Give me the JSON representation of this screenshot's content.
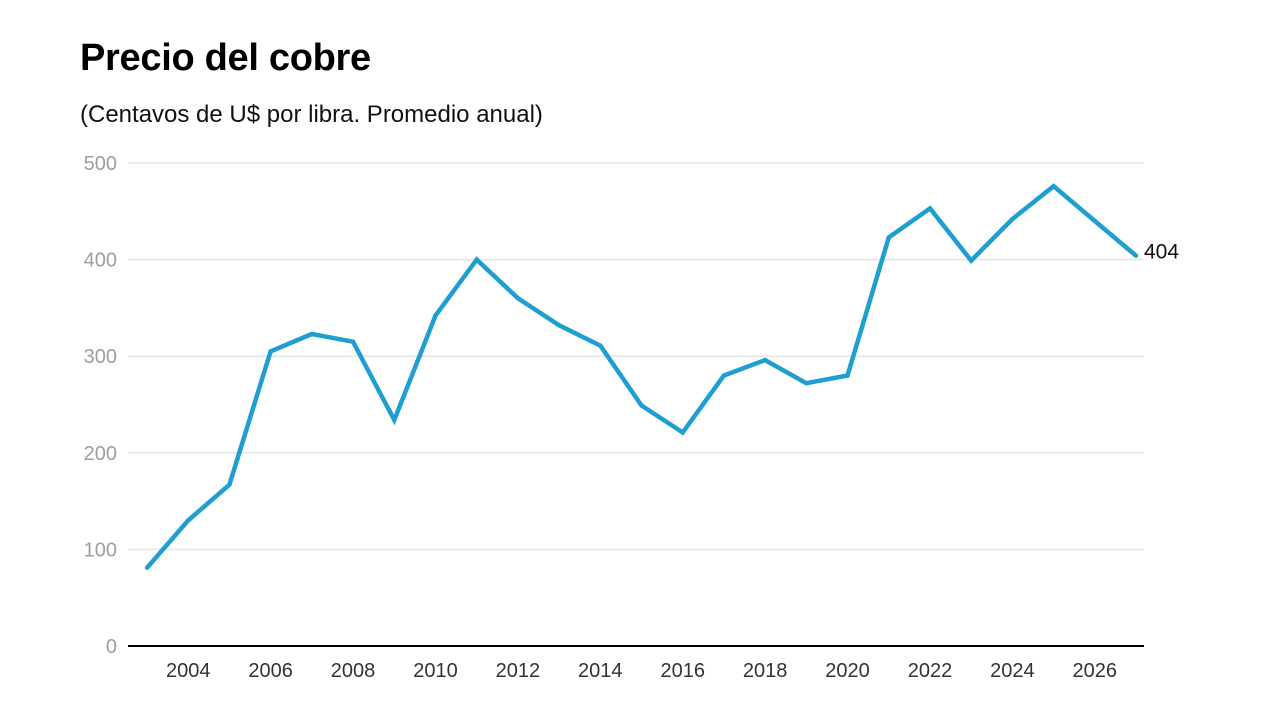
{
  "header": {
    "title": "Precio del cobre",
    "subtitle": "(Centavos de U$ por libra. Promedio anual)"
  },
  "chart_data": {
    "type": "line",
    "title": "Precio del cobre",
    "subtitle": "(Centavos de U$ por libra. Promedio anual)",
    "xlabel": "",
    "ylabel": "",
    "x": [
      2003,
      2004,
      2005,
      2006,
      2007,
      2008,
      2009,
      2010,
      2011,
      2012,
      2013,
      2014,
      2015,
      2016,
      2017,
      2018,
      2019,
      2020,
      2021,
      2022,
      2023,
      2024,
      2025,
      2026,
      2027
    ],
    "series": [
      {
        "name": "",
        "color": "#1f9fcf",
        "values": [
          81,
          130,
          167,
          305,
          323,
          315,
          234,
          342,
          400,
          360,
          332,
          311,
          249,
          221,
          280,
          296,
          272,
          280,
          423,
          453,
          399,
          442,
          476,
          440,
          404
        ]
      }
    ],
    "end_label": "404",
    "ylim": [
      0,
      500
    ],
    "yticks": [
      0,
      100,
      200,
      300,
      400,
      500
    ],
    "xlim": [
      2003,
      2027
    ],
    "xticks": [
      2004,
      2006,
      2008,
      2010,
      2012,
      2014,
      2016,
      2018,
      2020,
      2022,
      2024,
      2026
    ],
    "grid": true,
    "legend": "none",
    "colors": {
      "line": "#1f9fcf",
      "grid": "#e6e6e6",
      "axis": "#000000",
      "ytick_text": "#9e9e9e"
    }
  }
}
